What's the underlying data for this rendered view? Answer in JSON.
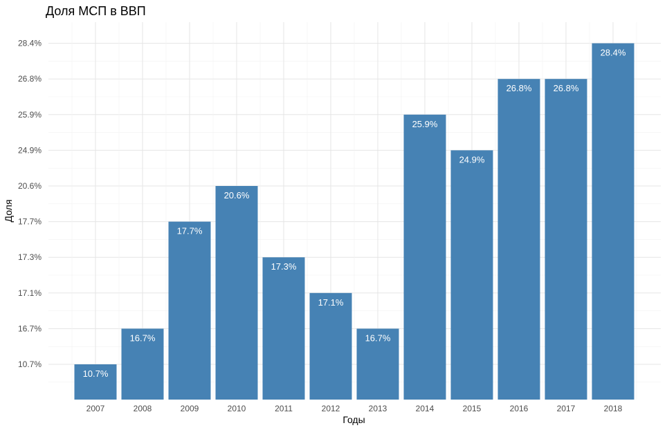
{
  "chart_data": {
    "type": "bar",
    "title": "Доля МСП в ВВП",
    "xlabel": "Годы",
    "ylabel": "Доля",
    "categories": [
      "2007",
      "2008",
      "2009",
      "2010",
      "2011",
      "2012",
      "2013",
      "2014",
      "2015",
      "2016",
      "2017",
      "2018"
    ],
    "values": [
      "10.7%",
      "16.7%",
      "17.7%",
      "20.6%",
      "17.3%",
      "17.1%",
      "16.7%",
      "25.9%",
      "24.9%",
      "26.8%",
      "26.8%",
      "28.4%"
    ],
    "y_ticks": [
      "10.7%",
      "16.7%",
      "17.1%",
      "17.3%",
      "17.7%",
      "20.6%",
      "24.9%",
      "25.9%",
      "26.8%",
      "28.4%"
    ],
    "y_axis_note": "categorical/discrete y axis with sorted unique values",
    "bar_color": "#4682B4",
    "label_color": "#ffffff",
    "grid": true,
    "legend": "none"
  }
}
